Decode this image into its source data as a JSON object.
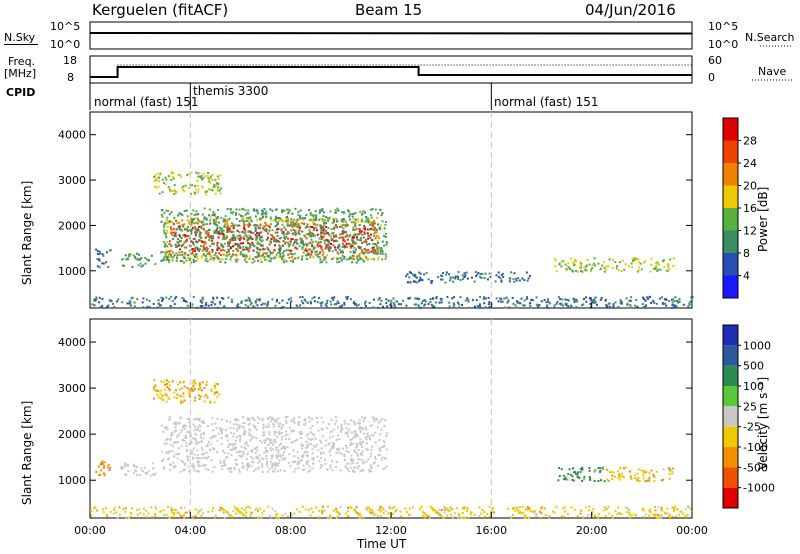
{
  "header": {
    "station": "Kerguelen (fitACF)",
    "beam": "Beam 15",
    "date": "04/Jun/2016"
  },
  "strip_labels": {
    "nsky": "N.Sky",
    "nsky_top": "10^5",
    "nsky_bottom": "10^0",
    "nsearch": "N.Search",
    "freq": "Freq.",
    "freq_unit": "[MHz]",
    "freq_top": "18",
    "freq_bottom": "8",
    "nave_top": "60",
    "nave_bottom": "0",
    "nave": "Nave",
    "cpid": "CPID"
  },
  "cpid_segments": [
    {
      "label": "normal (fast) 151",
      "start_h": 0
    },
    {
      "label": "themis 3300",
      "start_h": 4
    },
    {
      "label": "normal (fast) 151",
      "start_h": 16
    }
  ],
  "axes": {
    "xlabel": "Time UT",
    "xticks": [
      "00:00",
      "04:00",
      "08:00",
      "12:00",
      "16:00",
      "20:00",
      "00:00"
    ],
    "ylabel": "Slant Range [km]",
    "yticks": [
      "1000",
      "2000",
      "3000",
      "4000"
    ]
  },
  "colorbars": {
    "power": {
      "label": "Power [dB]",
      "ticks": [
        "4",
        "8",
        "12",
        "16",
        "20",
        "24",
        "28"
      ],
      "colors": [
        "#1a1aff",
        "#2850b4",
        "#3c8c64",
        "#58b040",
        "#f0c800",
        "#f08200",
        "#f04000",
        "#e00000"
      ]
    },
    "velocity": {
      "label": "Velocity [m s⁻¹]",
      "ticks": [
        "1000",
        "500",
        "100",
        "25",
        "-25",
        "-100",
        "-500",
        "-1000"
      ],
      "colors": [
        "#1c2fb4",
        "#2a5a9a",
        "#2e8a50",
        "#5ac83c",
        "#c8c8c8",
        "#f0c800",
        "#f09000",
        "#f05000",
        "#e00000"
      ]
    }
  },
  "chart_data": [
    {
      "type": "heatmap",
      "title": "",
      "quantity": "Power [dB]",
      "x_range_h": [
        0,
        24
      ],
      "y_range_km": [
        180,
        4500
      ],
      "regions": [
        {
          "t0": 2.9,
          "t1": 11.6,
          "r0": 1250,
          "r1": 2200,
          "level": 28
        },
        {
          "t0": 2.8,
          "t1": 11.8,
          "r0": 1200,
          "r1": 2400,
          "level": 12
        },
        {
          "t0": 2.5,
          "t1": 5.2,
          "r0": 2700,
          "r1": 3200,
          "level": 16
        },
        {
          "t0": 0.2,
          "t1": 0.8,
          "r0": 1100,
          "r1": 1500,
          "level": 8
        },
        {
          "t0": 1.2,
          "t1": 2.6,
          "r0": 1100,
          "r1": 1400,
          "level": 12
        },
        {
          "t0": 18.5,
          "t1": 23.3,
          "r0": 1000,
          "r1": 1300,
          "level": 16
        },
        {
          "t0": 12.5,
          "t1": 17.5,
          "r0": 750,
          "r1": 1000,
          "level": 8
        },
        {
          "t0": 0,
          "t1": 24,
          "r0": 200,
          "r1": 450,
          "level": 8
        }
      ]
    },
    {
      "type": "heatmap",
      "title": "",
      "quantity": "Velocity [m s⁻¹]",
      "x_range_h": [
        0,
        24
      ],
      "y_range_km": [
        180,
        4500
      ],
      "regions": [
        {
          "t0": 2.8,
          "t1": 11.8,
          "r0": 1200,
          "r1": 2400,
          "velocity": 0
        },
        {
          "t0": 2.5,
          "t1": 5.2,
          "r0": 2700,
          "r1": 3200,
          "velocity": -100
        },
        {
          "t0": 0.2,
          "t1": 0.8,
          "r0": 1100,
          "r1": 1500,
          "velocity": -300
        },
        {
          "t0": 1.2,
          "t1": 2.6,
          "r0": 1100,
          "r1": 1400,
          "velocity": 0
        },
        {
          "t0": 18.5,
          "t1": 20.5,
          "r0": 1000,
          "r1": 1300,
          "velocity": 150
        },
        {
          "t0": 20.5,
          "t1": 23.3,
          "r0": 1000,
          "r1": 1300,
          "velocity": -80
        },
        {
          "t0": 0,
          "t1": 24,
          "r0": 200,
          "r1": 450,
          "velocity": -60
        }
      ]
    }
  ]
}
